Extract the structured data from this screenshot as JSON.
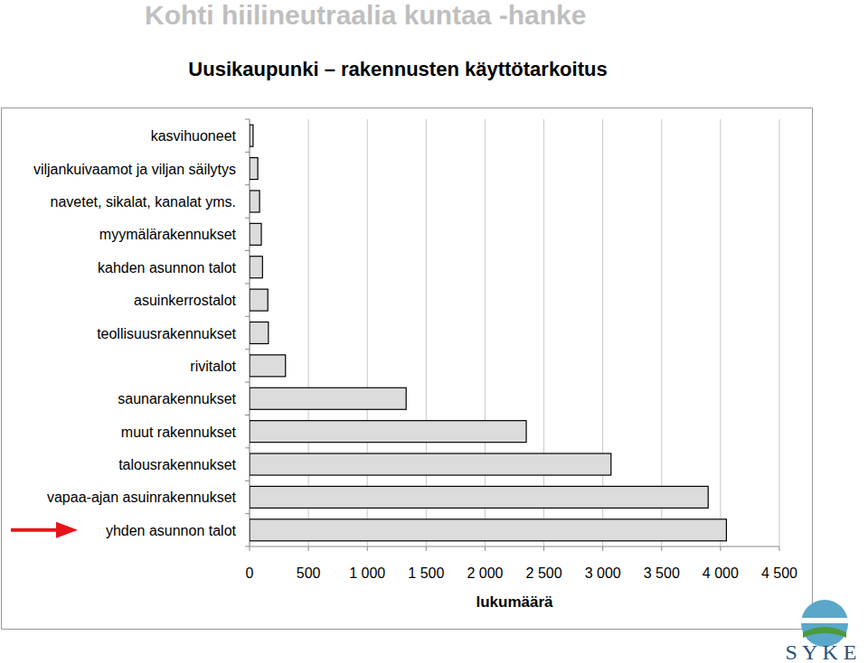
{
  "chart_data": {
    "type": "bar",
    "orientation": "horizontal",
    "title": "Kohti hiilineutraalia kuntaa -hanke",
    "subtitle": "Uusikaupunki – rakennusten käyttötarkoitus",
    "x_label": "lukumäärä",
    "annotations": [
      "S Y K E"
    ],
    "categories": [
      "kasvihuoneet",
      "viljankuivaamot ja viljan säilytys",
      "navetet, sikalat, kanalat yms.",
      "myymälärakennukset",
      "kahden asunnon talot",
      "asuinkerrostalot",
      "teollisuusrakennukset",
      "rivitalot",
      "saunarakennukset",
      "muut rakennukset",
      "talousrakennukset",
      "vapaa-ajan asuinrakennukset",
      "yhden asunnon talot"
    ],
    "values": [
      30,
      70,
      85,
      100,
      110,
      155,
      160,
      305,
      1330,
      2350,
      3070,
      3895,
      4050
    ],
    "color": "#dcdcdc",
    "xlim": [
      0,
      4500
    ],
    "xticks": [
      0,
      500,
      {
        "value": 1000,
        "label": "1 000"
      },
      {
        "value": 1500,
        "label": "1 500"
      },
      {
        "value": 2000,
        "label": "2 000"
      },
      {
        "value": 2500,
        "label": "2 500"
      },
      {
        "value": 3000,
        "label": "3 000"
      },
      {
        "value": 3500,
        "label": "3 500"
      },
      {
        "value": 4000,
        "label": "4 000"
      },
      {
        "value": 4500,
        "label": "4 500"
      }
    ],
    "grid": true
  }
}
